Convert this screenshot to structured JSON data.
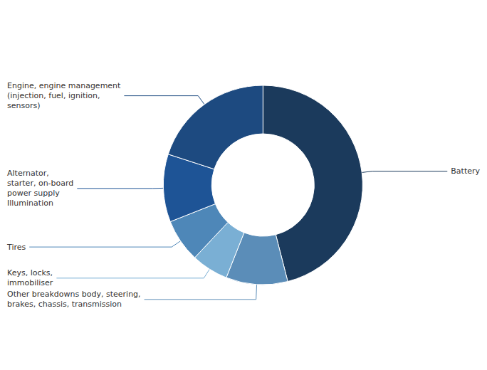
{
  "chart_data": {
    "type": "pie",
    "categories": [
      "Battery",
      "Other breakdowns body, steering,\nbrakes, chassis, transmission",
      "Keys, locks,\nimmobiliser",
      "Tires",
      "Alternator,\nstarter, on-board\npower supply\nIllumination",
      "Engine, engine management\n(injection, fuel, ignition,\nsensors)"
    ],
    "values": [
      46,
      10,
      6,
      7,
      11,
      20
    ],
    "colors": [
      "#1b3a5c",
      "#5b8db8",
      "#7aafd4",
      "#4e87b8",
      "#1e5496",
      "#1d4a80"
    ]
  }
}
